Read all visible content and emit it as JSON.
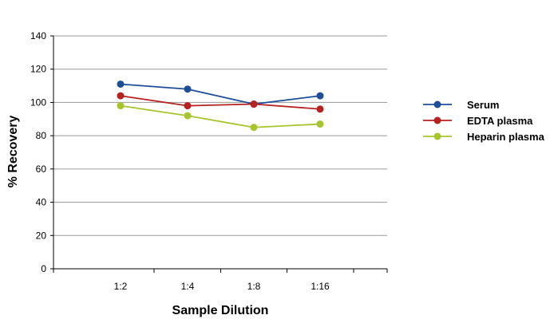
{
  "chart_data": {
    "type": "line",
    "categories": [
      "1:2",
      "1:4",
      "1:8",
      "1:16"
    ],
    "series": [
      {
        "name": "Serum",
        "values": [
          111,
          108,
          99,
          104
        ],
        "color": "#1f4e99"
      },
      {
        "name": "EDTA plasma",
        "values": [
          104,
          98,
          99,
          96
        ],
        "color": "#b5221f"
      },
      {
        "name": "Heparin plasma",
        "values": [
          98,
          92,
          85,
          87
        ],
        "color": "#a6c42c"
      }
    ],
    "xlabel": "Sample Dilution",
    "ylabel": "% Recovery",
    "ylim": [
      0,
      140
    ],
    "yticks": [
      0,
      20,
      40,
      60,
      80,
      100,
      120,
      140
    ],
    "grid": true,
    "legend_position": "right"
  }
}
